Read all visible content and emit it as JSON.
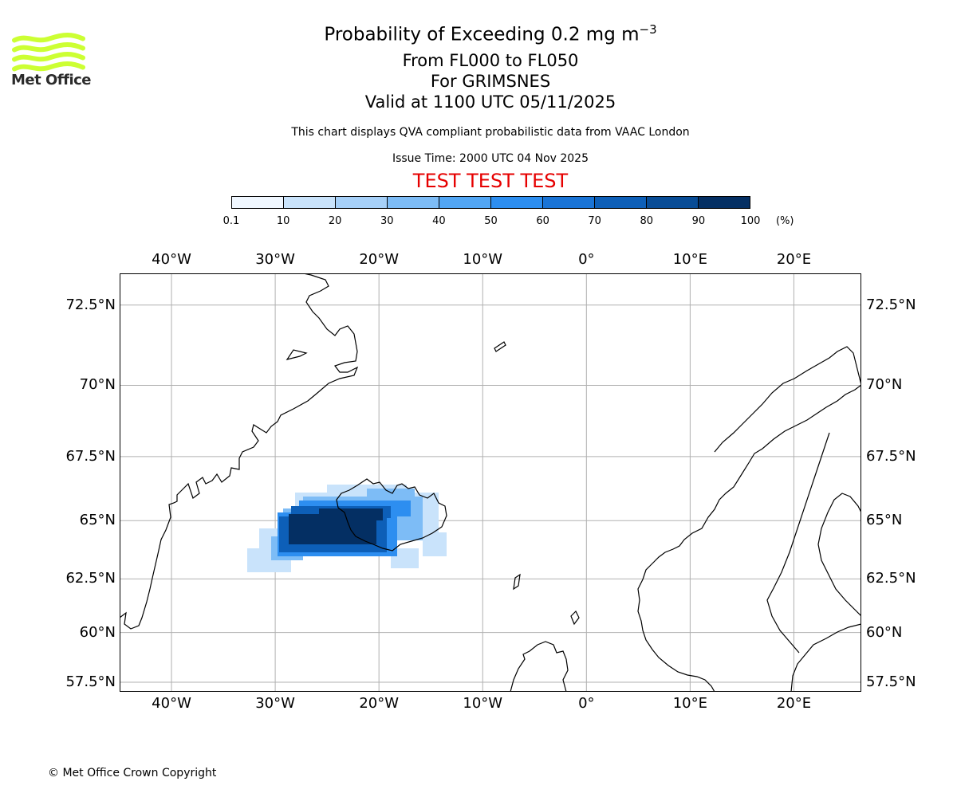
{
  "header": {
    "title": "Probability of Exceeding 0.2 mg m",
    "title_sup": "−3",
    "line1": "From FL000 to FL050",
    "line2": "For GRIMSNES",
    "line3": "Valid at 1100 UTC 05/11/2025",
    "note": "This chart displays QVA compliant probabilistic data from VAAC London",
    "issue_time": "Issue Time: 2000 UTC 04 Nov 2025",
    "test_banner": "TEST TEST TEST"
  },
  "logo": {
    "text": "Met Office",
    "color": "#ccff33"
  },
  "colorbar": {
    "ticks": [
      "0.1",
      "10",
      "20",
      "30",
      "40",
      "50",
      "60",
      "70",
      "80",
      "90",
      "100"
    ],
    "unit": "(%)",
    "colors": [
      "#f0f7ff",
      "#c9e3fb",
      "#a6d0f8",
      "#7dbcf6",
      "#52a6f4",
      "#2d8ef0",
      "#1a74d6",
      "#0d5fb8",
      "#084c96",
      "#042f63"
    ]
  },
  "map": {
    "lon_range": [
      -45,
      26.5
    ],
    "lat_range": [
      57,
      73.4
    ],
    "lon_labels": [
      {
        "lon": -40,
        "text": "40°W"
      },
      {
        "lon": -30,
        "text": "30°W"
      },
      {
        "lon": -20,
        "text": "20°W"
      },
      {
        "lon": -10,
        "text": "10°W"
      },
      {
        "lon": 0,
        "text": "0°"
      },
      {
        "lon": 10,
        "text": "10°E"
      },
      {
        "lon": 20,
        "text": "20°E"
      }
    ],
    "lat_labels": [
      {
        "lat": 72.5,
        "text": "72.5°N"
      },
      {
        "lat": 70,
        "text": "70°N"
      },
      {
        "lat": 67.5,
        "text": "67.5°N"
      },
      {
        "lat": 65,
        "text": "65°N"
      },
      {
        "lat": 62.5,
        "text": "62.5°N"
      },
      {
        "lat": 60,
        "text": "60°N"
      },
      {
        "lat": 57.5,
        "text": "57.5°N"
      }
    ]
  },
  "footer": {
    "copyright": "© Met Office Crown Copyright"
  }
}
